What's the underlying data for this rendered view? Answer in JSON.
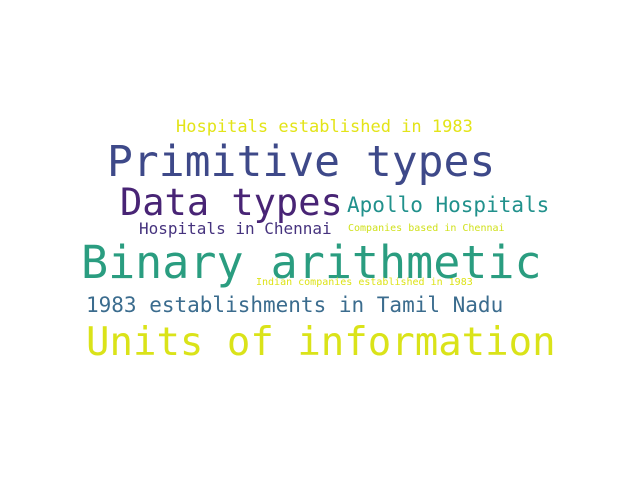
{
  "words": [
    {
      "text": "Hospitals established in 1983",
      "color": "#e3e418"
    },
    {
      "text": "Primitive types",
      "color": "#3e4989"
    },
    {
      "text": "Data types",
      "color": "#482475"
    },
    {
      "text": "Apollo Hospitals",
      "color": "#21918c"
    },
    {
      "text": "Hospitals in Chennai",
      "color": "#46337e"
    },
    {
      "text": "Companies based in Chennai",
      "color": "#d0e11c"
    },
    {
      "text": "Binary arithmetic",
      "color": "#2a9d80"
    },
    {
      "text": "Indian companies established in 1983",
      "color": "#dde318"
    },
    {
      "text": "1983 establishments in Tamil Nadu",
      "color": "#3b6c8e"
    },
    {
      "text": "Units of information",
      "color": "#dae319"
    }
  ]
}
